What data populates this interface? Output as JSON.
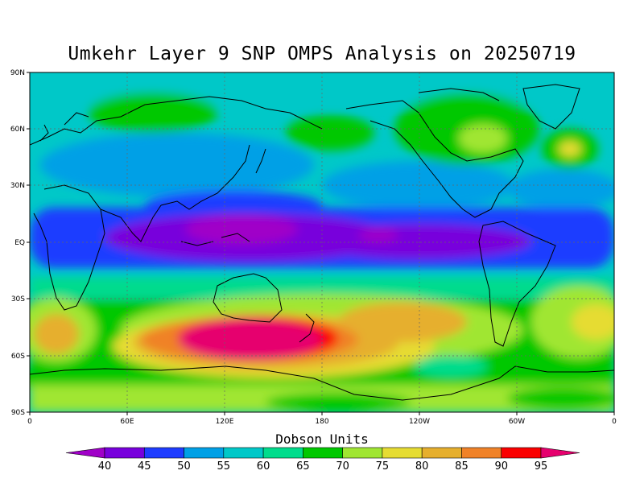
{
  "title": "Umkehr Layer 9 SNP OMPS Analysis on 20250719",
  "lat_labels": [
    "90N",
    "60N",
    "30N",
    "EQ",
    "30S",
    "60S",
    "90S"
  ],
  "lon_labels": [
    "0",
    "60E",
    "120E",
    "180",
    "120W",
    "60W",
    "0"
  ],
  "colorbar": {
    "title": "Dobson Units",
    "labels": [
      "40",
      "45",
      "50",
      "55",
      "60",
      "65",
      "70",
      "75",
      "80",
      "85",
      "90",
      "95"
    ],
    "colors": [
      "#a000c8",
      "#7800dc",
      "#1e3cff",
      "#00a0e6",
      "#00c8c8",
      "#00dc8c",
      "#00c800",
      "#a0e632",
      "#e6dc32",
      "#e6af2d",
      "#f08228",
      "#fa0000",
      "#e6006e"
    ]
  },
  "chart_data": {
    "type": "heatmap",
    "title": "Umkehr Layer 9 SNP OMPS Analysis on 20250719",
    "xlabel": "",
    "ylabel": "",
    "x_range": [
      0,
      360
    ],
    "y_range": [
      -90,
      90
    ],
    "grid": true,
    "levels": [
      40,
      45,
      50,
      55,
      60,
      65,
      70,
      75,
      80,
      85,
      90,
      95
    ],
    "units": "Dobson Units",
    "regions": [
      {
        "lat": 0,
        "lon": 130,
        "value": 42
      },
      {
        "lat": 0,
        "lon": 200,
        "value": 44
      },
      {
        "lat": 0,
        "lon": 290,
        "value": 45
      },
      {
        "lat": 2,
        "lon": 20,
        "value": 48
      },
      {
        "lat": 20,
        "lon": 120,
        "value": 52
      },
      {
        "lat": 20,
        "lon": 240,
        "value": 55
      },
      {
        "lat": 35,
        "lon": 90,
        "value": 57
      },
      {
        "lat": 60,
        "lon": 60,
        "value": 68
      },
      {
        "lat": 60,
        "lon": 285,
        "value": 72
      },
      {
        "lat": 50,
        "lon": 335,
        "value": 70
      },
      {
        "lat": -20,
        "lon": 60,
        "value": 60
      },
      {
        "lat": -30,
        "lon": 240,
        "value": 68
      },
      {
        "lat": -45,
        "lon": 140,
        "value": 94
      },
      {
        "lat": -50,
        "lon": 95,
        "value": 85
      },
      {
        "lat": -40,
        "lon": 225,
        "value": 82
      },
      {
        "lat": -45,
        "lon": 345,
        "value": 78
      },
      {
        "lat": -55,
        "lon": 255,
        "value": 66
      },
      {
        "lat": -70,
        "lon": 180,
        "value": 73
      },
      {
        "lat": 80,
        "lon": 180,
        "value": 58
      }
    ]
  }
}
